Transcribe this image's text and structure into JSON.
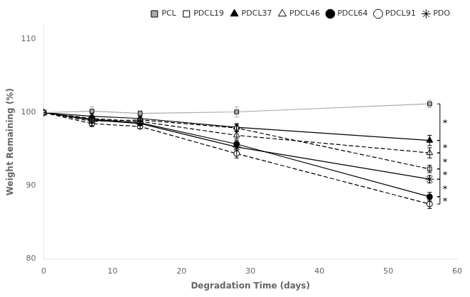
{
  "chart_data": {
    "type": "line",
    "xlabel": "Degradation Time (days)",
    "ylabel": "Weight Remaining (%)",
    "x": [
      0,
      7,
      14,
      28,
      56
    ],
    "series": [
      {
        "name": "PCL",
        "values": [
          100,
          100.2,
          99.9,
          100.1,
          101.2
        ],
        "yerr": [
          0.0,
          0.6,
          0.4,
          0.7,
          0.5
        ],
        "color": "#aaaaaa",
        "marker": "square",
        "line_style": "solid"
      },
      {
        "name": "PDCL19",
        "values": [
          100,
          98.8,
          99.0,
          97.9,
          92.3
        ],
        "yerr": [
          0.0,
          0.6,
          0.3,
          0.5,
          0.5
        ],
        "color": "black",
        "marker": "square-open",
        "line_style": "dashed"
      },
      {
        "name": "PDCL37",
        "values": [
          100,
          99.5,
          99.2,
          98.0,
          96.2
        ],
        "yerr": [
          0.0,
          0.4,
          0.3,
          0.5,
          0.7
        ],
        "color": "black",
        "marker": "triangle",
        "line_style": "solid"
      },
      {
        "name": "PDCL46",
        "values": [
          100,
          99.2,
          98.8,
          96.9,
          94.5
        ],
        "yerr": [
          0.0,
          0.4,
          0.3,
          0.5,
          0.7
        ],
        "color": "black",
        "marker": "triangle-open",
        "line_style": "dashed"
      },
      {
        "name": "PDCL64",
        "values": [
          100,
          99.1,
          98.6,
          95.7,
          88.5
        ],
        "yerr": [
          0.0,
          0.4,
          0.3,
          0.5,
          0.6
        ],
        "color": "black",
        "marker": "circle",
        "line_style": "solid"
      },
      {
        "name": "PDCL91",
        "values": [
          100,
          98.5,
          98.1,
          94.4,
          87.5
        ],
        "yerr": [
          0.0,
          0.4,
          0.3,
          0.6,
          0.6
        ],
        "color": "black",
        "marker": "circle-open",
        "line_style": "dashed"
      },
      {
        "name": "PDO",
        "values": [
          100,
          99.0,
          98.5,
          95.3,
          90.9
        ],
        "yerr": [
          0.0,
          0.4,
          0.3,
          0.5,
          0.5
        ],
        "color": "black",
        "marker": "star",
        "line_style": "solid"
      }
    ],
    "annotations": [
      {
        "text": "*",
        "x": 57.5,
        "y1": 101.2,
        "y2": 96.2
      },
      {
        "text": "*",
        "x": 57.5,
        "y1": 96.2,
        "y2": 94.5
      },
      {
        "text": "*",
        "x": 57.5,
        "y1": 94.5,
        "y2": 92.3
      },
      {
        "text": "*",
        "x": 57.5,
        "y1": 92.3,
        "y2": 90.9
      },
      {
        "text": "*",
        "x": 57.5,
        "y1": 90.9,
        "y2": 88.5
      },
      {
        "text": "*",
        "x": 57.5,
        "y1": 88.5,
        "y2": 87.5
      }
    ],
    "xlim": [
      0,
      60
    ],
    "xticks": [
      0,
      10,
      20,
      30,
      40,
      50,
      60
    ],
    "ylim": [
      80,
      112
    ],
    "yticks": [
      80,
      90,
      100,
      110
    ],
    "grid": false,
    "legend": "upper right"
  }
}
